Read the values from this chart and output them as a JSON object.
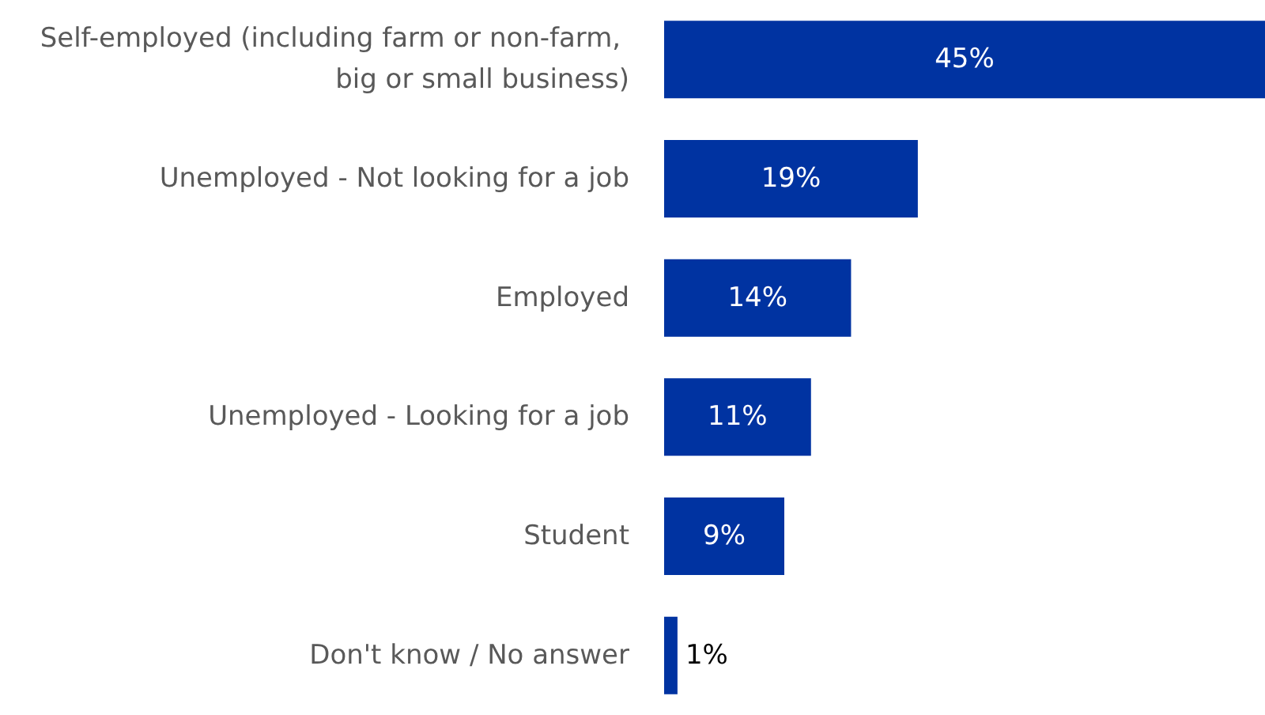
{
  "chart_data": {
    "type": "bar",
    "orientation": "horizontal",
    "categories": [
      "Self-employed (including farm or non-farm, big or small business)",
      "Unemployed - Not looking for a job",
      "Employed",
      "Unemployed - Looking for a job",
      "Student",
      "Don't know / No answer"
    ],
    "value_labels": [
      "45%",
      "19%",
      "14%",
      "11%",
      "9%",
      "1%"
    ],
    "values": [
      45,
      19,
      14,
      11,
      9,
      1
    ],
    "color": "#0033a1"
  }
}
